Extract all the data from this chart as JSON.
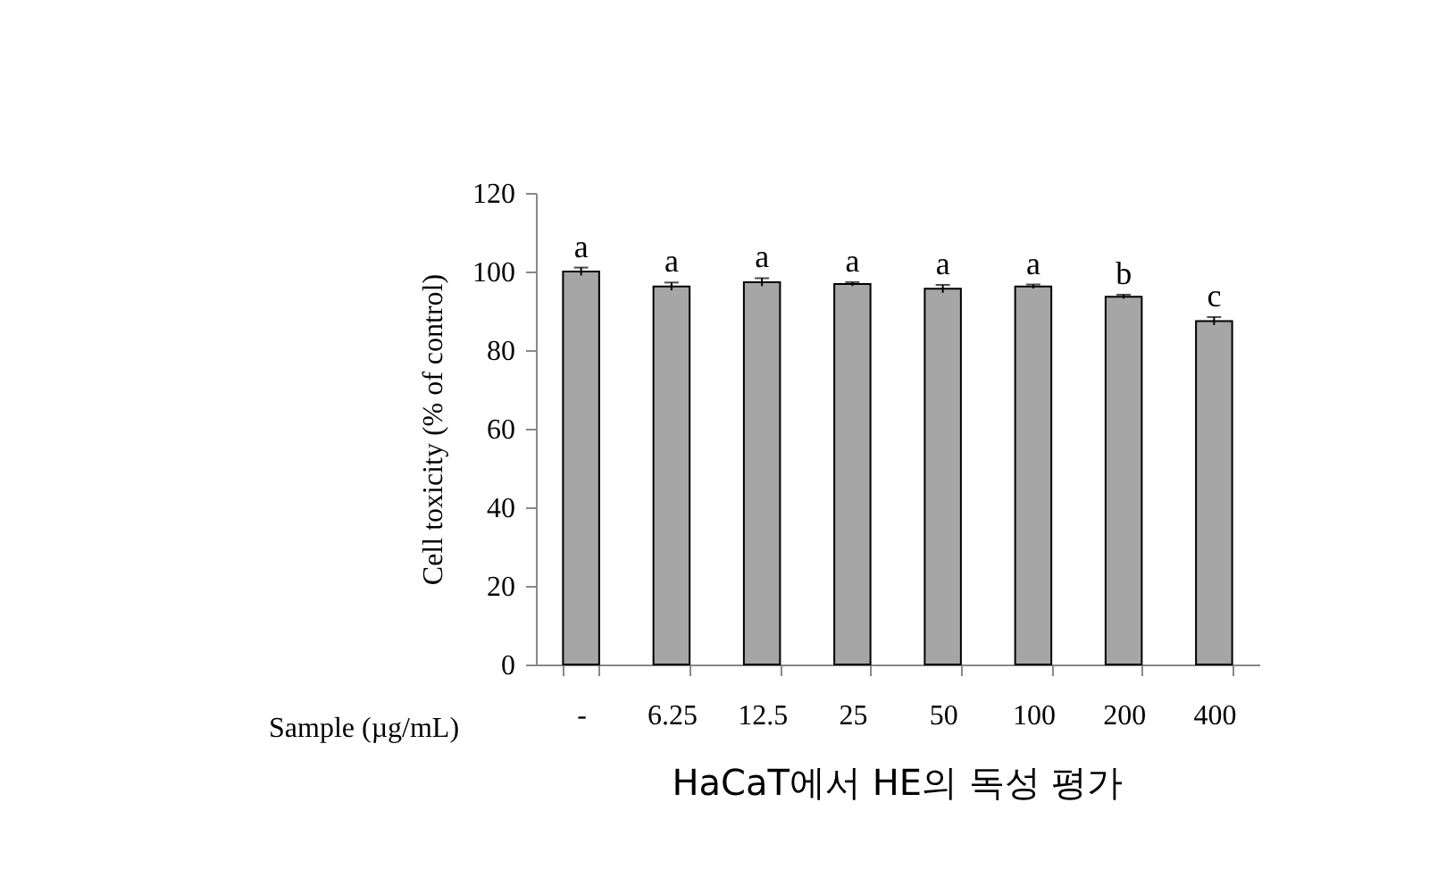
{
  "chart_data": {
    "type": "bar",
    "title": "HaCaT에서 HE의 독성 평가",
    "xlabel": "Sample (µg/mL)",
    "ylabel": "Cell toxicity  (% of control)",
    "categories": [
      "-",
      "6.25",
      "12.5",
      "25",
      "50",
      "100",
      "200",
      "400"
    ],
    "values": [
      100,
      96.2,
      97.3,
      96.8,
      95.6,
      96.2,
      93.6,
      87.4
    ],
    "errors": [
      1,
      1,
      1,
      0.5,
      1,
      0.5,
      0.5,
      1
    ],
    "color": "#a6a6a6",
    "ylim": [
      0,
      120
    ],
    "yticks": [
      0,
      20,
      40,
      60,
      80,
      100,
      120
    ],
    "grid": false,
    "annotations": [
      {
        "text": "a",
        "x": "-",
        "y": 101
      },
      {
        "text": "a",
        "x": "6.25",
        "y": 97.2
      },
      {
        "text": "a",
        "x": "12.5",
        "y": 98.3
      },
      {
        "text": "a",
        "x": "25",
        "y": 97.3
      },
      {
        "text": "a",
        "x": "50",
        "y": 96.6
      },
      {
        "text": "a",
        "x": "100",
        "y": 96.7
      },
      {
        "text": "b",
        "x": "200",
        "y": 94.1
      },
      {
        "text": "c",
        "x": "400",
        "y": 88.4
      }
    ]
  }
}
